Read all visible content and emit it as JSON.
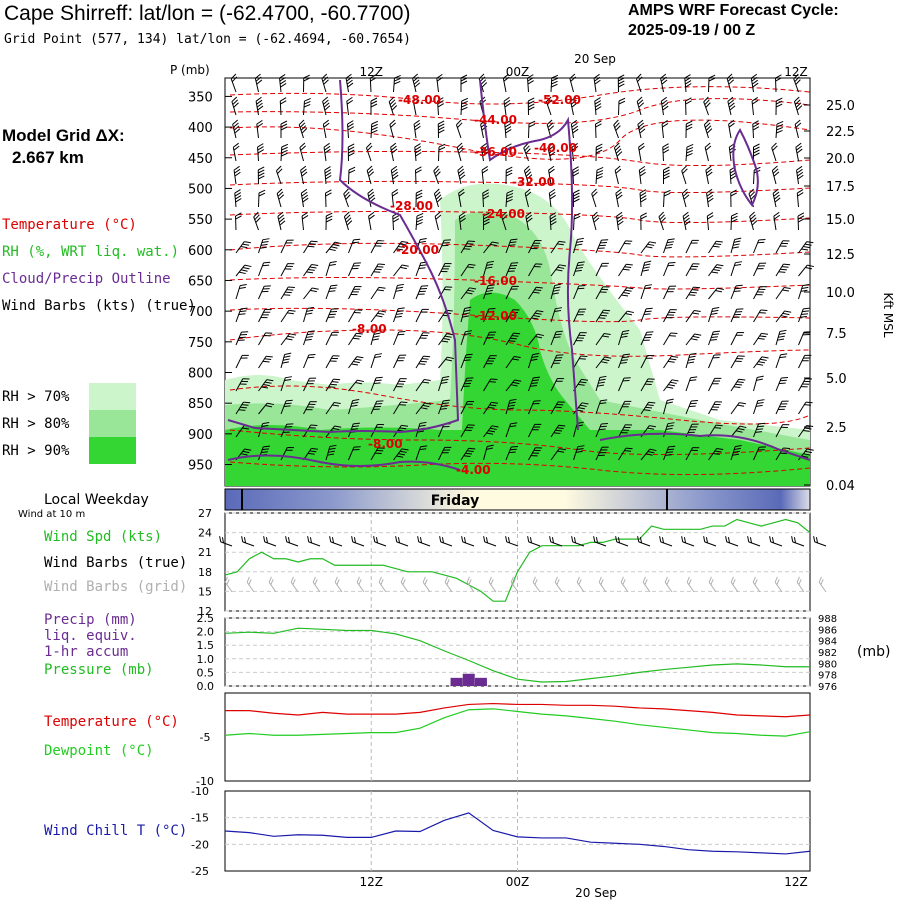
{
  "header": {
    "title": "Cape Shirreff:  lat/lon = (-62.4700, -60.7700)",
    "grid_point": "Grid Point (577, 134) lat/lon = (-62.4694, -60.7654)",
    "forecast_cycle_label": "AMPS WRF Forecast Cycle:",
    "forecast_cycle_value": "2025-09-19 / 00  Z"
  },
  "sidebar": {
    "model_grid_label": "Model Grid ΔX:",
    "model_grid_value": "2.667 km",
    "legend": {
      "temperature": "Temperature (°C)",
      "rh": "RH (%, WRT liq. wat.)",
      "cloud": "Cloud/Precip Outline",
      "wind": "Wind Barbs (kts) (true)"
    },
    "rh_levels": [
      {
        "label": "RH > 70%",
        "color": "#ccf5cc"
      },
      {
        "label": "RH > 80%",
        "color": "#99e699"
      },
      {
        "label": "RH > 90%",
        "color": "#33d633"
      }
    ],
    "local_weekday_label": "Local Weekday",
    "wind_at_label": "Wind at 10 m"
  },
  "colors": {
    "temperature": "#dd0000",
    "rh_text": "#22bb22",
    "cloud": "#6a2c91",
    "dewpoint": "#22cc22",
    "windchill": "#1a1aaa",
    "grid_barbs": "#b0b0b0"
  },
  "chart_data": [
    {
      "type": "heatmap",
      "name": "cross-section",
      "p_label": "P (mb)",
      "y_right_label": "Kft MSL",
      "pressure_ticks": [
        "350",
        "400",
        "450",
        "500",
        "550",
        "600",
        "650",
        "700",
        "750",
        "800",
        "850",
        "900",
        "950"
      ],
      "pressure_range": [
        320,
        985
      ],
      "height_ticks_kft": [
        "25.0",
        "22.5",
        "20.0",
        "17.5",
        "15.0",
        "12.5",
        "10.0",
        "7.5",
        "5.0",
        "2.5",
        "0.04"
      ],
      "time_ticks_top": [
        "12Z",
        "00Z",
        "12Z"
      ],
      "top_date": "20 Sep",
      "time_range_hours": [
        0,
        48
      ],
      "temperature_labels": [
        "-48.00",
        "-52.00",
        "-44.00",
        "-36.00",
        "-40.00",
        "-32.00",
        "-28.00",
        "-24.00",
        "-20.00",
        "-16.00",
        "-12.00",
        "-8.00",
        "-8.00",
        "-4.00"
      ],
      "weekday_bar": "Friday"
    },
    {
      "type": "line",
      "name": "wind",
      "legend": [
        "Wind Spd (kts)",
        "Wind Barbs (true)",
        "Wind Barbs (grid)"
      ],
      "y_ticks": [
        "27",
        "24",
        "21",
        "18",
        "15",
        "12"
      ],
      "ylim": [
        12,
        27
      ],
      "x_hours": [
        0,
        1,
        2,
        3,
        4,
        5,
        6,
        7,
        8,
        9,
        10,
        11,
        12,
        13,
        14,
        15,
        16,
        17,
        18,
        19,
        20,
        21,
        22,
        23,
        24,
        25,
        26,
        27,
        28,
        29,
        30,
        31,
        32,
        33,
        34,
        35,
        36,
        37,
        38,
        39,
        40,
        41,
        42,
        43,
        44,
        45,
        46,
        47,
        48
      ],
      "wind_speed": [
        17.5,
        18,
        20,
        21,
        20,
        20,
        19.5,
        20,
        20,
        19,
        19,
        19,
        19,
        19,
        18.5,
        18,
        18,
        18,
        17.5,
        17,
        16,
        15,
        13.5,
        13.5,
        18,
        21,
        22,
        22,
        22,
        22,
        22.5,
        22.5,
        23,
        23,
        23,
        25,
        24.5,
        24.5,
        24.5,
        24.5,
        25,
        25,
        26,
        25.5,
        25,
        25.5,
        26,
        25.5,
        24
      ]
    },
    {
      "type": "line",
      "name": "precip-pressure",
      "legend": [
        "Precip (mm)",
        "liq. equiv.",
        "1-hr accum",
        "Pressure (mb)"
      ],
      "y_ticks_left": [
        "2.5",
        "2.0",
        "1.5",
        "1.0",
        "0.5",
        "0.0"
      ],
      "y_ticks_right": [
        "988",
        "986",
        "984",
        "982",
        "980",
        "978",
        "976"
      ],
      "right_unit": "(mb)",
      "precip_ylim": [
        0,
        2.5
      ],
      "pressure_ylim": [
        976,
        988
      ],
      "x_hours": [
        0,
        2,
        4,
        6,
        8,
        10,
        12,
        14,
        16,
        18,
        20,
        22,
        24,
        26,
        28,
        30,
        32,
        34,
        36,
        38,
        40,
        42,
        44,
        46,
        48
      ],
      "pressure": [
        985.3,
        985.5,
        985.3,
        986.2,
        986,
        985.8,
        985.8,
        985.2,
        984,
        982.2,
        980.5,
        978.7,
        977.2,
        976.7,
        976.8,
        977.3,
        977.8,
        978.4,
        978.9,
        979.3,
        979.7,
        979.9,
        979.7,
        979.4,
        979.4
      ],
      "precip_bars": [
        {
          "hour": 19,
          "value": 0.3
        },
        {
          "hour": 20,
          "value": 0.45
        },
        {
          "hour": 21,
          "value": 0.3
        }
      ]
    },
    {
      "type": "line",
      "name": "temperature-dewpoint",
      "legend": [
        "Temperature (°C)",
        "Dewpoint (°C)"
      ],
      "y_ticks": [
        "-5",
        "-10"
      ],
      "ylim": [
        -10,
        0
      ],
      "x_hours": [
        0,
        2,
        4,
        6,
        8,
        10,
        12,
        14,
        16,
        18,
        20,
        22,
        24,
        26,
        28,
        30,
        32,
        34,
        36,
        38,
        40,
        42,
        44,
        46,
        48
      ],
      "temperature": [
        -2,
        -2,
        -2.3,
        -2.5,
        -2.2,
        -2.4,
        -2.4,
        -2.4,
        -2.2,
        -1.7,
        -1.3,
        -1.2,
        -1.3,
        -1.3,
        -1.4,
        -1.4,
        -1.5,
        -1.7,
        -1.8,
        -2.0,
        -2.2,
        -2.5,
        -2.6,
        -2.7,
        -2.5
      ],
      "dewpoint": [
        -4.8,
        -4.6,
        -4.8,
        -4.8,
        -4.7,
        -4.6,
        -4.5,
        -4.5,
        -4.0,
        -2.8,
        -1.9,
        -1.8,
        -2.1,
        -2.4,
        -2.6,
        -2.9,
        -3.2,
        -3.6,
        -3.9,
        -4.2,
        -4.5,
        -4.6,
        -4.8,
        -4.9,
        -4.4
      ]
    },
    {
      "type": "line",
      "name": "wind-chill",
      "legend": [
        "Wind Chill T (°C)"
      ],
      "y_ticks": [
        "-10",
        "-15",
        "-20",
        "-25"
      ],
      "ylim": [
        -25,
        -10
      ],
      "x_ticks_bottom": [
        "12Z",
        "00Z",
        "12Z"
      ],
      "bottom_date": "20 Sep",
      "x_hours": [
        0,
        2,
        4,
        6,
        8,
        10,
        12,
        14,
        16,
        18,
        20,
        22,
        24,
        26,
        28,
        30,
        32,
        34,
        36,
        38,
        40,
        42,
        44,
        46,
        48
      ],
      "wind_chill": [
        -17.5,
        -17.8,
        -18.5,
        -18.2,
        -18.3,
        -18.7,
        -18.7,
        -17.5,
        -17.6,
        -15.5,
        -14.1,
        -17.4,
        -18.6,
        -18.8,
        -18.8,
        -19.6,
        -19.8,
        -20.0,
        -20.4,
        -21.0,
        -21.3,
        -21.4,
        -21.6,
        -21.8,
        -21.3
      ]
    }
  ]
}
